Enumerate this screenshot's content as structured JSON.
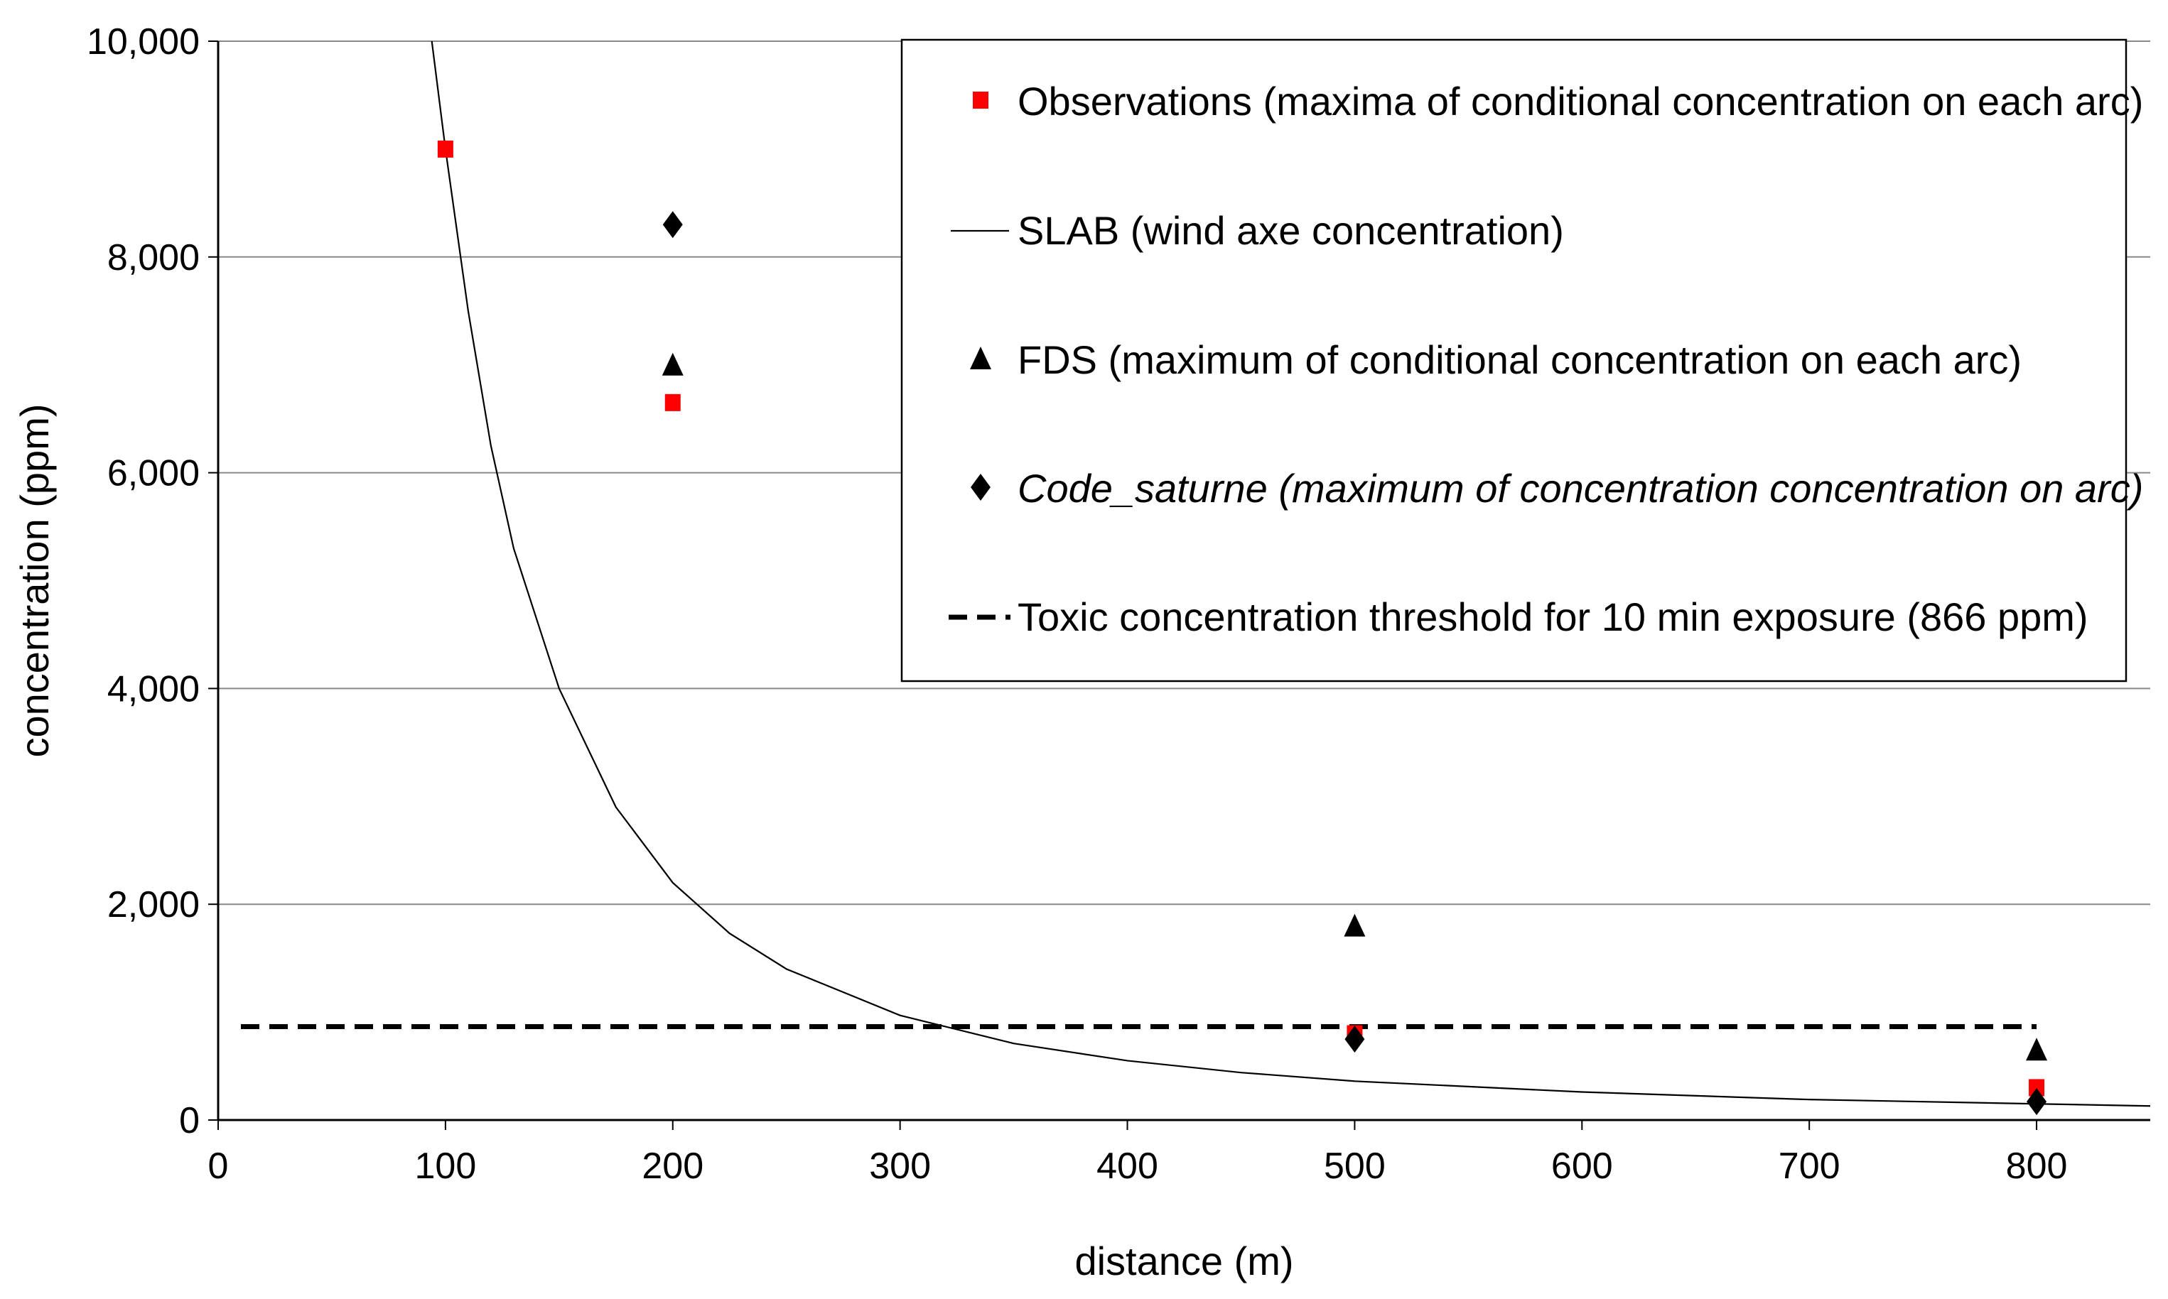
{
  "chart_data": {
    "type": "scatter",
    "xlabel": "distance (m)",
    "ylabel": "concentration (ppm)",
    "xlim": [
      0,
      850
    ],
    "ylim": [
      0,
      10000
    ],
    "x_ticks": [
      "0",
      "100",
      "200",
      "300",
      "400",
      "500",
      "600",
      "700",
      "800"
    ],
    "x_tick_values": [
      0,
      100,
      200,
      300,
      400,
      500,
      600,
      700,
      800
    ],
    "y_ticks": [
      "0",
      "2,000",
      "4,000",
      "6,000",
      "8,000",
      "10,000"
    ],
    "y_tick_values": [
      0,
      2000,
      4000,
      6000,
      8000,
      10000
    ],
    "grid": "horizontal",
    "legend_position": "top-right",
    "series": [
      {
        "name": "Observations (maxima of conditional concentration on each arc)",
        "kind": "marker",
        "marker": "square",
        "color": "#ff0000",
        "x": [
          100,
          200,
          500,
          800
        ],
        "y": [
          9000,
          6650,
          800,
          300
        ]
      },
      {
        "name": "SLAB (wind axe concentration)",
        "kind": "line",
        "color": "#000000",
        "x": [
          94,
          100,
          110,
          120,
          130,
          150,
          175,
          200,
          225,
          250,
          300,
          350,
          400,
          450,
          500,
          600,
          700,
          800,
          850
        ],
        "y": [
          10000,
          9000,
          7500,
          6250,
          5300,
          4000,
          2900,
          2200,
          1730,
          1400,
          970,
          710,
          550,
          440,
          360,
          260,
          190,
          150,
          130
        ]
      },
      {
        "name": "FDS (maximum of conditional concentration on each arc)",
        "kind": "marker",
        "marker": "triangle",
        "color": "#000000",
        "x": [
          200,
          500,
          800
        ],
        "y": [
          7000,
          1800,
          650
        ]
      },
      {
        "name": "Code_saturne (maximum of concentration concentration on arc)",
        "name_italic": "Code_saturne",
        "name_rest": " (maximum of concentration concentration on arc)",
        "kind": "marker",
        "marker": "diamond",
        "color": "#000000",
        "x": [
          200,
          500,
          800
        ],
        "y": [
          8300,
          750,
          170
        ]
      },
      {
        "name": "Toxic concentration threshold for 10 min exposure (866 ppm)",
        "kind": "dashed",
        "color": "#000000",
        "x": [
          10,
          800
        ],
        "y": [
          866,
          866
        ]
      }
    ]
  }
}
